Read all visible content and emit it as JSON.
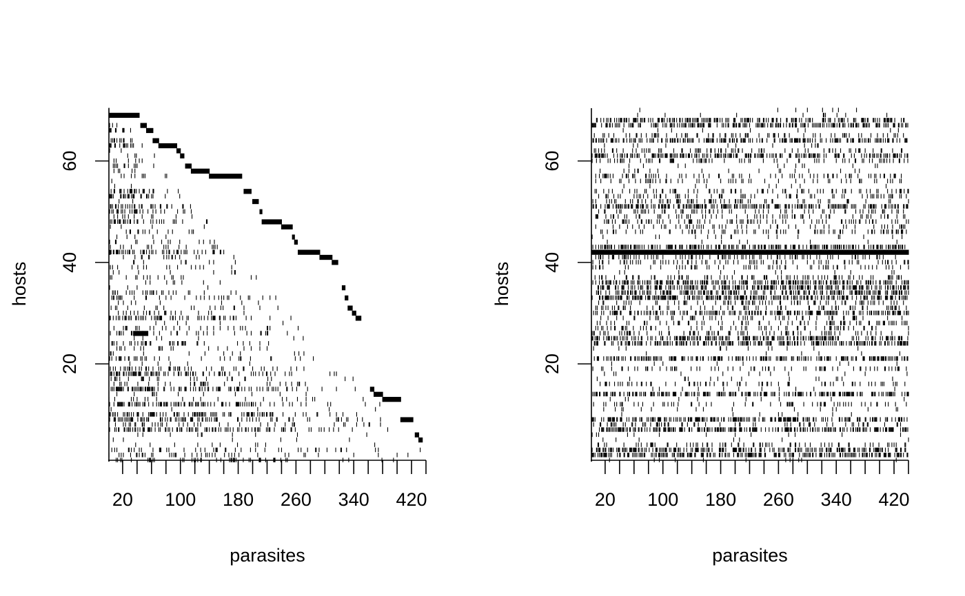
{
  "chart_data": [
    {
      "type": "heatmap",
      "panel": "left",
      "xlabel": "parasites",
      "ylabel": "hosts",
      "x_ticks": [
        20,
        100,
        180,
        260,
        340,
        420
      ],
      "y_ticks": [
        20,
        40,
        60
      ],
      "xlim": [
        1,
        440
      ],
      "ylim": [
        1,
        70
      ],
      "grid": false,
      "legend": "none",
      "ink_color": "#000000",
      "background_color": "#ffffff",
      "ordering": "nested",
      "rows": [
        {
          "host": 69,
          "runs": [
            [
              1,
              43
            ]
          ]
        },
        {
          "host": 67,
          "runs": [
            [
              45,
              53
            ]
          ]
        },
        {
          "host": 66,
          "runs": [
            [
              53,
              62
            ]
          ]
        },
        {
          "host": 64,
          "runs": [
            [
              62,
              70
            ]
          ]
        },
        {
          "host": 63,
          "runs": [
            [
              70,
              95
            ]
          ]
        },
        {
          "host": 62,
          "runs": [
            [
              95,
              100
            ]
          ]
        },
        {
          "host": 61,
          "runs": [
            [
              100,
              105
            ]
          ]
        },
        {
          "host": 59,
          "runs": [
            [
              107,
              115
            ]
          ]
        },
        {
          "host": 58,
          "runs": [
            [
              115,
              140
            ]
          ]
        },
        {
          "host": 57,
          "runs": [
            [
              140,
              185
            ]
          ]
        },
        {
          "host": 54,
          "runs": [
            [
              188,
              198
            ]
          ]
        },
        {
          "host": 52,
          "runs": [
            [
              200,
              208
            ]
          ]
        },
        {
          "host": 50,
          "runs": [
            [
              210,
              213
            ]
          ]
        },
        {
          "host": 48,
          "runs": [
            [
              213,
              240
            ]
          ]
        },
        {
          "host": 47,
          "runs": [
            [
              240,
              255
            ]
          ]
        },
        {
          "host": 45,
          "runs": [
            [
              255,
              258
            ]
          ]
        },
        {
          "host": 44,
          "runs": [
            [
              258,
              262
            ]
          ]
        },
        {
          "host": 42,
          "runs": [
            [
              1,
              3
            ],
            [
              263,
              293
            ]
          ]
        },
        {
          "host": 41,
          "runs": [
            [
              293,
              310
            ]
          ]
        },
        {
          "host": 40,
          "runs": [
            [
              310,
              318
            ]
          ]
        },
        {
          "host": 35,
          "runs": [
            [
              324,
              328
            ]
          ]
        },
        {
          "host": 33,
          "runs": [
            [
              328,
              332
            ]
          ]
        },
        {
          "host": 31,
          "runs": [
            [
              332,
              338
            ]
          ]
        },
        {
          "host": 30,
          "runs": [
            [
              338,
              343
            ]
          ]
        },
        {
          "host": 29,
          "runs": [
            [
              343,
              350
            ]
          ]
        },
        {
          "host": 26,
          "runs": [
            [
              35,
              55
            ]
          ]
        },
        {
          "host": 15,
          "runs": [
            [
              363,
              368
            ]
          ]
        },
        {
          "host": 14,
          "runs": [
            [
              368,
              380
            ]
          ]
        },
        {
          "host": 13,
          "runs": [
            [
              380,
              405
            ]
          ]
        },
        {
          "host": 9,
          "runs": [
            [
              405,
              422
            ]
          ]
        },
        {
          "host": 6,
          "runs": [
            [
              425,
              430
            ]
          ]
        },
        {
          "host": 5,
          "runs": [
            [
              430,
              435
            ]
          ]
        }
      ]
    },
    {
      "type": "heatmap",
      "panel": "right",
      "xlabel": "parasites",
      "ylabel": "hosts",
      "x_ticks": [
        20,
        100,
        180,
        260,
        340,
        420
      ],
      "y_ticks": [
        20,
        40,
        60
      ],
      "xlim": [
        1,
        440
      ],
      "ylim": [
        1,
        70
      ],
      "grid": false,
      "legend": "none",
      "ink_color": "#000000",
      "background_color": "#ffffff",
      "ordering": "random",
      "rows": [
        {
          "host": 42,
          "runs": [
            [
              1,
              440
            ]
          ]
        }
      ]
    }
  ]
}
